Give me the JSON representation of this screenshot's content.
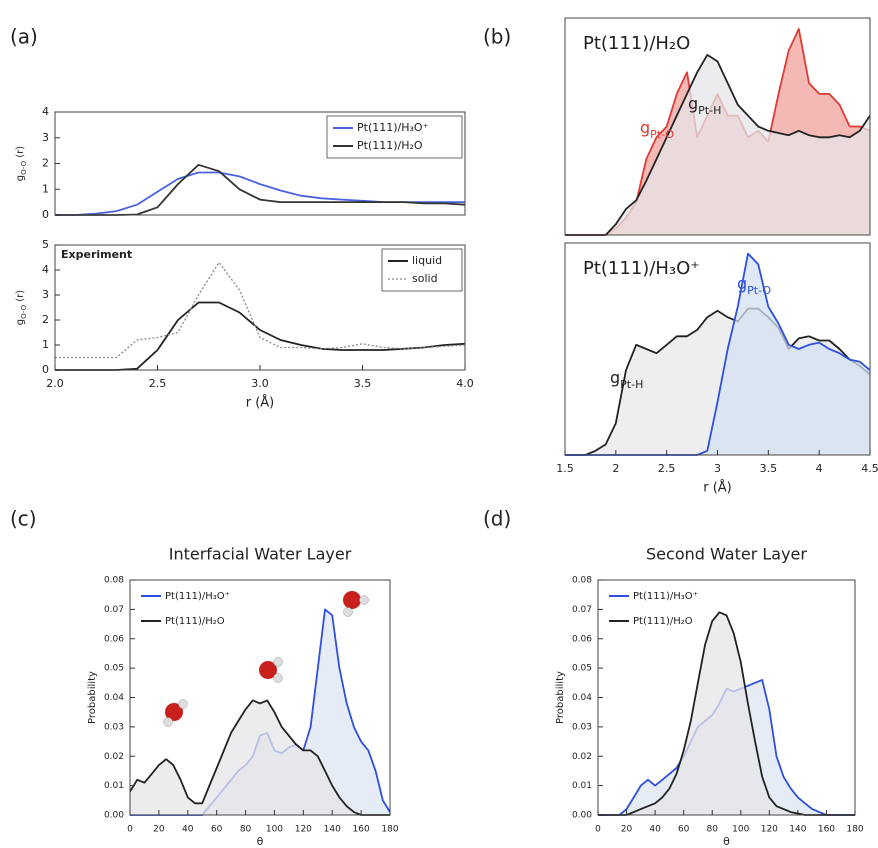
{
  "chart_data": [
    {
      "type": "line",
      "panel_label": "(a)",
      "ylabel": {
        "text": "g",
        "subscript": "O-O",
        "suffix": " (r)"
      },
      "xlim": [
        2.0,
        4.0
      ],
      "ylim": [
        0,
        4
      ],
      "yticks": [
        0,
        1,
        2,
        3,
        4
      ],
      "legend": "upper right",
      "x": [
        2.0,
        2.1,
        2.2,
        2.3,
        2.4,
        2.5,
        2.6,
        2.7,
        2.8,
        2.9,
        3.0,
        3.1,
        3.2,
        3.3,
        3.4,
        3.5,
        3.6,
        3.7,
        3.8,
        3.9,
        4.0
      ],
      "series": [
        {
          "name": "Pt(111)/H₃O⁺",
          "color": "#4a62e0",
          "values": [
            0,
            0,
            0.05,
            0.15,
            0.4,
            0.9,
            1.4,
            1.65,
            1.65,
            1.5,
            1.2,
            0.95,
            0.75,
            0.65,
            0.6,
            0.55,
            0.5,
            0.5,
            0.5,
            0.5,
            0.5
          ]
        },
        {
          "name": "Pt(111)/H₂O",
          "color": "#333333",
          "values": [
            0,
            0,
            0,
            0,
            0.02,
            0.3,
            1.2,
            1.95,
            1.7,
            1.0,
            0.6,
            0.5,
            0.5,
            0.5,
            0.5,
            0.5,
            0.5,
            0.5,
            0.45,
            0.45,
            0.4
          ]
        }
      ]
    },
    {
      "type": "line",
      "ylabel": {
        "text": "g",
        "subscript": "O-O",
        "suffix": " (r)"
      },
      "xlabel": "r (Å)",
      "annotations": [
        "Experiment"
      ],
      "xlim": [
        2.0,
        4.0
      ],
      "ylim": [
        0,
        5
      ],
      "yticks": [
        0,
        1,
        2,
        3,
        4,
        5
      ],
      "xticks": [
        {
          "value": 2.0,
          "label": "2.0"
        },
        2.5,
        {
          "value": 3.0,
          "label": "3.0"
        },
        3.5,
        {
          "value": 4.0,
          "label": "4.0"
        }
      ],
      "legend": "upper right",
      "x": [
        2.0,
        2.1,
        2.2,
        2.3,
        2.4,
        2.5,
        2.6,
        2.7,
        2.8,
        2.9,
        3.0,
        3.1,
        3.2,
        3.3,
        3.4,
        3.5,
        3.6,
        3.7,
        3.8,
        3.9,
        4.0
      ],
      "series": [
        {
          "name": "liquid",
          "color": "#222222",
          "values": [
            0,
            0,
            0,
            0,
            0.05,
            0.8,
            2.0,
            2.7,
            2.7,
            2.3,
            1.6,
            1.2,
            1.0,
            0.85,
            0.8,
            0.8,
            0.8,
            0.85,
            0.9,
            1.0,
            1.05
          ]
        },
        {
          "name": "solid",
          "color": "#888888",
          "style": "dotted",
          "values": [
            0.5,
            0.5,
            0.5,
            0.5,
            1.2,
            1.3,
            1.5,
            3.0,
            4.3,
            3.2,
            1.3,
            0.9,
            0.9,
            0.85,
            0.9,
            1.05,
            0.9,
            0.85,
            0.9,
            0.95,
            1.0
          ]
        }
      ]
    },
    {
      "type": "area",
      "panel_label": "(b)",
      "title": "Pt(111)/H₂O",
      "xlim": [
        1.5,
        4.5
      ],
      "ylim": [
        0,
        10
      ],
      "x": [
        1.5,
        1.6,
        1.7,
        1.8,
        1.9,
        2.0,
        2.1,
        2.2,
        2.3,
        2.4,
        2.5,
        2.6,
        2.7,
        2.8,
        2.9,
        3.0,
        3.1,
        3.2,
        3.3,
        3.4,
        3.5,
        3.6,
        3.7,
        3.8,
        3.9,
        4.0,
        4.1,
        4.2,
        4.3,
        4.4,
        4.5
      ],
      "series": [
        {
          "name": "g",
          "subscript": "Pt-O",
          "color": "#e03a34",
          "fill": "#f2a29c",
          "values": [
            0,
            0,
            0,
            0,
            0,
            0.3,
            0.8,
            1.5,
            3.5,
            4.5,
            5,
            6.5,
            7.5,
            4.5,
            5.5,
            6.5,
            5.5,
            5.5,
            4.5,
            4.8,
            4.3,
            6.5,
            8.5,
            9.5,
            7.0,
            6.5,
            6.5,
            6.0,
            5.0,
            5.0,
            4.8
          ]
        },
        {
          "name": "g",
          "subscript": "Pt-H",
          "color": "#222222",
          "fill": "#e6e6e8",
          "values": [
            0,
            0,
            0,
            0,
            0,
            0.5,
            1.2,
            1.6,
            2.5,
            3.5,
            4.5,
            5.5,
            6.5,
            7.5,
            8.3,
            8.0,
            7.0,
            6.0,
            5.5,
            5.0,
            4.8,
            4.7,
            4.6,
            4.8,
            4.6,
            4.5,
            4.5,
            4.6,
            4.5,
            4.8,
            5.5
          ]
        }
      ]
    },
    {
      "type": "area",
      "title": "Pt(111)/H₃O⁺",
      "xlabel": "r (Å)",
      "xlim": [
        1.5,
        4.5
      ],
      "ylim": [
        0,
        10
      ],
      "xticks": [
        1.5,
        2,
        2.5,
        3,
        3.5,
        4,
        4.5
      ],
      "x": [
        1.5,
        1.6,
        1.7,
        1.8,
        1.9,
        2.0,
        2.1,
        2.2,
        2.3,
        2.4,
        2.5,
        2.6,
        2.7,
        2.8,
        2.9,
        3.0,
        3.1,
        3.2,
        3.3,
        3.4,
        3.5,
        3.6,
        3.7,
        3.8,
        3.9,
        4.0,
        4.1,
        4.2,
        4.3,
        4.4,
        4.5
      ],
      "series": [
        {
          "name": "g",
          "subscript": "Pt-H",
          "color": "#222222",
          "fill": "#e8e8ea",
          "values": [
            0,
            0,
            0,
            0.2,
            0.5,
            1.5,
            4.0,
            5.2,
            5.0,
            4.8,
            5.2,
            5.6,
            5.6,
            5.9,
            6.5,
            6.8,
            6.5,
            6.3,
            6.9,
            6.9,
            6.5,
            6.0,
            5.0,
            5.5,
            5.6,
            5.4,
            5.4,
            5.0,
            4.5,
            4.2,
            3.8
          ]
        },
        {
          "name": "g",
          "subscript": "Pt-O",
          "color": "#2e4fe0",
          "fill": "#d4e0f2",
          "values": [
            0,
            0,
            0,
            0,
            0,
            0,
            0,
            0,
            0,
            0,
            0,
            0,
            0,
            0,
            0.2,
            2.5,
            5.0,
            7.0,
            9.5,
            9.0,
            7.0,
            6.2,
            5.2,
            5.0,
            5.2,
            5.3,
            5.0,
            4.8,
            4.5,
            4.4,
            4.0
          ]
        }
      ]
    },
    {
      "type": "area",
      "panel_label": "(c)",
      "title": "Interfacial Water Layer",
      "xlabel": "θ",
      "ylabel": "Probability",
      "xlim": [
        0,
        180
      ],
      "ylim": [
        0,
        0.08
      ],
      "xticks": [
        0,
        20,
        40,
        60,
        80,
        100,
        120,
        140,
        160,
        180
      ],
      "yticks": [
        {
          "value": 0,
          "label": "0.00"
        },
        0.01,
        0.02,
        0.03,
        0.04,
        0.05,
        0.06,
        0.07,
        0.08
      ],
      "legend": "upper left",
      "x": [
        0,
        5,
        10,
        15,
        20,
        25,
        30,
        35,
        40,
        45,
        50,
        55,
        60,
        65,
        70,
        75,
        80,
        85,
        90,
        95,
        100,
        105,
        110,
        115,
        120,
        125,
        130,
        135,
        140,
        145,
        150,
        155,
        160,
        165,
        170,
        175,
        180
      ],
      "series": [
        {
          "name": "Pt(111)/H₃O⁺",
          "color": "#2e4fe0",
          "fill": "#dce5f3",
          "values": [
            0,
            0,
            0,
            0,
            0,
            0,
            0,
            0,
            0,
            0,
            0,
            0.003,
            0.006,
            0.009,
            0.012,
            0.015,
            0.017,
            0.02,
            0.027,
            0.028,
            0.022,
            0.021,
            0.023,
            0.024,
            0.022,
            0.03,
            0.05,
            0.07,
            0.068,
            0.05,
            0.038,
            0.03,
            0.025,
            0.022,
            0.015,
            0.005,
            0.001
          ]
        },
        {
          "name": "Pt(111)/H₂O",
          "color": "#222222",
          "fill": "#e6e6e8",
          "values": [
            0.008,
            0.012,
            0.011,
            0.014,
            0.017,
            0.019,
            0.017,
            0.012,
            0.006,
            0.004,
            0.004,
            0.01,
            0.016,
            0.022,
            0.028,
            0.032,
            0.036,
            0.039,
            0.038,
            0.039,
            0.035,
            0.03,
            0.027,
            0.024,
            0.022,
            0.022,
            0.02,
            0.015,
            0.01,
            0.006,
            0.003,
            0.001,
            0,
            0,
            0,
            0,
            0
          ]
        }
      ]
    },
    {
      "type": "area",
      "panel_label": "(d)",
      "title": "Second Water Layer",
      "xlabel": "θ",
      "ylabel": "Probability",
      "xlim": [
        0,
        180
      ],
      "ylim": [
        0,
        0.08
      ],
      "xticks": [
        0,
        20,
        40,
        60,
        80,
        100,
        120,
        140,
        160,
        180
      ],
      "yticks": [
        {
          "value": 0,
          "label": "0.00"
        },
        0.01,
        0.02,
        0.03,
        0.04,
        0.05,
        0.06,
        0.07,
        0.08
      ],
      "legend": "upper left",
      "x": [
        0,
        5,
        10,
        15,
        20,
        25,
        30,
        35,
        40,
        45,
        50,
        55,
        60,
        65,
        70,
        75,
        80,
        85,
        90,
        95,
        100,
        105,
        110,
        115,
        120,
        125,
        130,
        135,
        140,
        145,
        150,
        155,
        160,
        165,
        170,
        175,
        180
      ],
      "series": [
        {
          "name": "Pt(111)/H₃O⁺",
          "color": "#2e4fe0",
          "fill": "#dce5f3",
          "values": [
            0,
            0,
            0,
            0,
            0.002,
            0.006,
            0.01,
            0.012,
            0.01,
            0.012,
            0.014,
            0.016,
            0.02,
            0.025,
            0.03,
            0.032,
            0.034,
            0.038,
            0.043,
            0.042,
            0.043,
            0.044,
            0.045,
            0.046,
            0.036,
            0.02,
            0.013,
            0.009,
            0.006,
            0.004,
            0.002,
            0.001,
            0,
            0,
            0,
            0,
            0
          ]
        },
        {
          "name": "Pt(111)/H₂O",
          "color": "#222222",
          "fill": "#e6e6e8",
          "values": [
            0,
            0,
            0,
            0,
            0,
            0.001,
            0.002,
            0.003,
            0.004,
            0.006,
            0.009,
            0.014,
            0.022,
            0.032,
            0.045,
            0.058,
            0.066,
            0.069,
            0.068,
            0.062,
            0.052,
            0.038,
            0.025,
            0.013,
            0.006,
            0.003,
            0.002,
            0.001,
            0.0005,
            0,
            0,
            0,
            0,
            0,
            0,
            0,
            0
          ]
        }
      ]
    }
  ]
}
